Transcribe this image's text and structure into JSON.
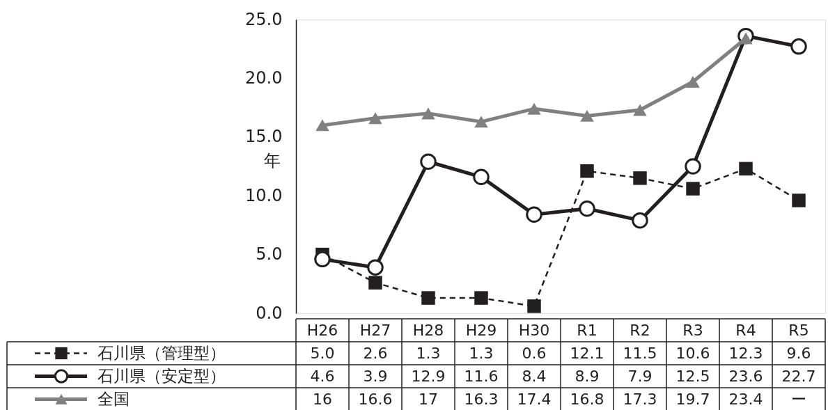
{
  "chart_data": {
    "type": "line",
    "ylabel": "年",
    "categories": [
      "H26",
      "H27",
      "H28",
      "H29",
      "H30",
      "R1",
      "R2",
      "R3",
      "R4",
      "R5"
    ],
    "ylim": [
      0,
      25
    ],
    "yticks": [
      {
        "value": 0,
        "label": "0.0"
      },
      {
        "value": 5,
        "label": "5.0"
      },
      {
        "value": 10,
        "label": "10.0"
      },
      {
        "value": 15,
        "label": "15.0"
      },
      {
        "value": 20,
        "label": "20.0"
      },
      {
        "value": 25,
        "label": "25.0"
      }
    ],
    "grid": false,
    "legend": "bottom left",
    "series": [
      {
        "name": "石川県（管理型）",
        "color": "#231f20",
        "marker": "square",
        "line_style": "dashed",
        "values": [
          5.0,
          2.6,
          1.3,
          1.3,
          0.6,
          12.1,
          11.5,
          10.6,
          12.3,
          9.6
        ],
        "value_labels": [
          "5.0",
          "2.6",
          "1.3",
          "1.3",
          "0.6",
          "12.1",
          "11.5",
          "10.6",
          "12.3",
          "9.6"
        ]
      },
      {
        "name": "石川県（安定型）",
        "color": "#231f20",
        "marker": "circle",
        "line_style": "solid",
        "values": [
          4.6,
          3.9,
          12.9,
          11.6,
          8.4,
          8.9,
          7.9,
          12.5,
          23.6,
          22.7
        ],
        "value_labels": [
          "4.6",
          "3.9",
          "12.9",
          "11.6",
          "8.4",
          "8.9",
          "7.9",
          "12.5",
          "23.6",
          "22.7"
        ]
      },
      {
        "name": "全国",
        "color": "#808080",
        "marker": "triangle",
        "line_style": "solid",
        "values": [
          16,
          16.6,
          17,
          16.3,
          17.4,
          16.8,
          17.3,
          19.7,
          23.4,
          null
        ],
        "value_labels": [
          "16",
          "16.6",
          "17",
          "16.3",
          "17.4",
          "16.8",
          "17.3",
          "19.7",
          "23.4",
          "ー"
        ]
      }
    ]
  }
}
